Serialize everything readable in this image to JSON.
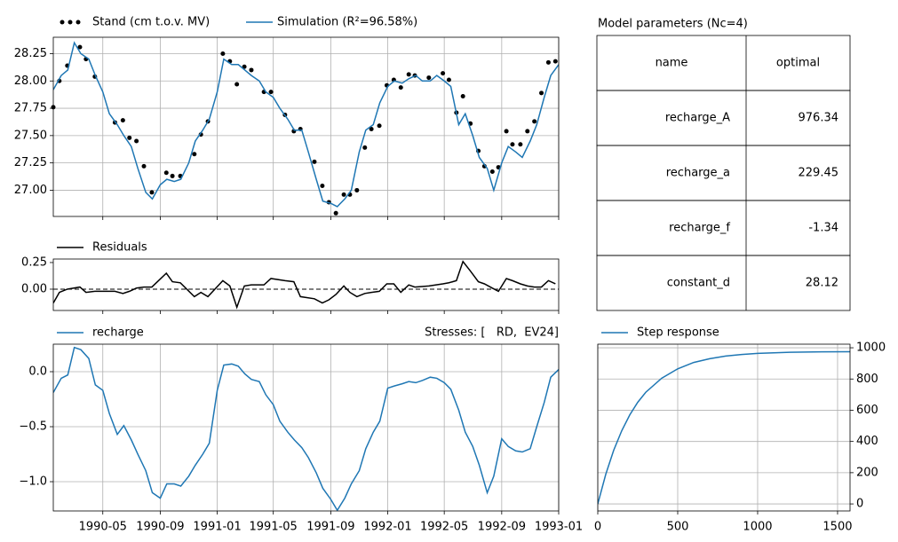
{
  "chart_data": [
    {
      "type": "line",
      "xlim": [
        "1990-01-15",
        "1993-01-01"
      ],
      "ylim": [
        26.76,
        28.4
      ],
      "yticks": [
        28.25,
        {
          "value": 28,
          "label": "28.00"
        },
        27.75,
        {
          "value": 27.5,
          "label": "27.50"
        },
        27.25,
        {
          "value": 27,
          "label": "27.00"
        }
      ],
      "xticks": [
        "1990-05",
        "1990-09",
        "1991-01",
        "1991-05",
        "1991-09",
        "1992-01",
        "1992-05",
        "1992-09",
        "1993-01"
      ],
      "xticklabels": false,
      "grid": true,
      "series": [
        {
          "name": "Stand (cm t.o.v. MV)",
          "color": "#000000",
          "marker": "dot",
          "x": [
            "1990-01-15",
            "1990-01-28",
            "1990-02-14",
            "1990-03-13",
            "1990-03-26",
            "1990-04-14",
            "1990-05-27",
            "1990-06-13",
            "1990-06-27",
            "1990-07-12",
            "1990-07-28",
            "1990-08-14",
            "1990-09-14",
            "1990-09-27",
            "1990-10-14",
            "1990-11-13",
            "1990-11-27",
            "1990-12-12",
            "1991-01-13",
            "1991-01-28",
            "1991-02-12",
            "1991-02-28",
            "1991-03-15",
            "1991-04-11",
            "1991-04-26",
            "1991-05-26",
            "1991-06-14",
            "1991-06-28",
            "1991-07-28",
            "1991-08-14",
            "1991-08-28",
            "1991-09-12",
            "1991-09-29",
            "1991-10-12",
            "1991-10-27",
            "1991-11-13",
            "1991-11-27",
            "1991-12-14",
            "1991-12-30",
            "1992-01-14",
            "1992-01-29",
            "1992-02-15",
            "1992-02-28",
            "1992-03-29",
            "1992-04-28",
            "1992-05-11",
            "1992-05-27",
            "1992-06-10",
            "1992-06-26",
            "1992-07-13",
            "1992-07-26",
            "1992-08-12",
            "1992-08-25",
            "1992-09-11",
            "1992-09-24",
            "1992-10-11",
            "1992-10-26",
            "1992-11-10",
            "1992-11-25",
            "1992-12-10",
            "1992-12-25"
          ],
          "values": [
            27.76,
            28.0,
            28.14,
            28.31,
            28.2,
            28.04,
            27.62,
            27.64,
            27.48,
            27.45,
            27.22,
            26.98,
            27.16,
            27.13,
            27.13,
            27.33,
            27.51,
            27.63,
            28.25,
            28.18,
            27.97,
            28.13,
            28.1,
            27.9,
            27.9,
            27.69,
            27.54,
            27.56,
            27.26,
            27.04,
            26.89,
            26.79,
            26.96,
            26.96,
            27.0,
            27.39,
            27.56,
            27.59,
            27.96,
            28.01,
            27.94,
            28.06,
            28.05,
            28.03,
            28.07,
            28.01,
            27.71,
            27.86,
            27.61,
            27.36,
            27.22,
            27.17,
            27.21,
            27.54,
            27.42,
            27.42,
            27.54,
            27.63,
            27.89,
            28.17,
            28.18
          ]
        },
        {
          "name": "Simulation (R²=96.58%)",
          "color": "#1f77b4",
          "x": [
            "1990-01-15",
            "1990-02-01",
            "1990-02-15",
            "1990-03-01",
            "1990-03-15",
            "1990-04-01",
            "1990-04-15",
            "1990-05-01",
            "1990-05-15",
            "1990-06-01",
            "1990-06-15",
            "1990-07-01",
            "1990-07-15",
            "1990-08-01",
            "1990-08-15",
            "1990-09-01",
            "1990-09-15",
            "1990-10-01",
            "1990-10-15",
            "1990-11-01",
            "1990-11-15",
            "1990-12-01",
            "1990-12-15",
            "1991-01-01",
            "1991-01-15",
            "1991-02-01",
            "1991-02-15",
            "1991-03-01",
            "1991-03-15",
            "1991-04-01",
            "1991-04-15",
            "1991-05-01",
            "1991-05-15",
            "1991-06-01",
            "1991-06-15",
            "1991-07-01",
            "1991-07-15",
            "1991-08-01",
            "1991-08-15",
            "1991-09-01",
            "1991-09-15",
            "1991-10-01",
            "1991-10-15",
            "1991-11-01",
            "1991-11-15",
            "1991-12-01",
            "1991-12-15",
            "1992-01-01",
            "1992-01-15",
            "1992-02-01",
            "1992-02-15",
            "1992-03-01",
            "1992-03-15",
            "1992-04-01",
            "1992-04-15",
            "1992-05-01",
            "1992-05-15",
            "1992-06-01",
            "1992-06-15",
            "1992-07-01",
            "1992-07-15",
            "1992-08-01",
            "1992-08-15",
            "1992-09-01",
            "1992-09-15",
            "1992-10-01",
            "1992-10-15",
            "1992-11-01",
            "1992-11-15",
            "1992-12-01",
            "1992-12-15",
            "1993-01-01"
          ],
          "values": [
            27.92,
            28.05,
            28.1,
            28.35,
            28.25,
            28.2,
            28.05,
            27.9,
            27.7,
            27.6,
            27.5,
            27.4,
            27.2,
            26.98,
            26.92,
            27.05,
            27.1,
            27.08,
            27.1,
            27.25,
            27.45,
            27.55,
            27.65,
            27.9,
            28.2,
            28.15,
            28.15,
            28.1,
            28.05,
            28.0,
            27.9,
            27.85,
            27.75,
            27.65,
            27.55,
            27.55,
            27.35,
            27.1,
            26.9,
            26.88,
            26.85,
            26.92,
            27.0,
            27.35,
            27.55,
            27.6,
            27.8,
            27.95,
            28.0,
            27.98,
            28.02,
            28.05,
            28.0,
            28.0,
            28.05,
            28.0,
            27.95,
            27.6,
            27.7,
            27.5,
            27.3,
            27.2,
            27.0,
            27.25,
            27.4,
            27.35,
            27.3,
            27.45,
            27.6,
            27.85,
            28.05,
            28.15
          ]
        }
      ]
    },
    {
      "type": "line",
      "xlim": [
        "1990-01-15",
        "1993-01-01"
      ],
      "ylim": [
        -0.2,
        0.283
      ],
      "yticks": [
        0.25,
        {
          "value": 0,
          "label": "0.00"
        }
      ],
      "xticks": [
        "1990-05",
        "1990-09",
        "1991-01",
        "1991-05",
        "1991-09",
        "1992-01",
        "1992-05",
        "1992-09",
        "1993-01"
      ],
      "xticklabels": false,
      "grid": false,
      "zero_line": true,
      "series": [
        {
          "name": "Residuals",
          "color": "#000000",
          "x": [
            "1990-01-15",
            "1990-01-28",
            "1990-02-14",
            "1990-03-13",
            "1990-03-26",
            "1990-04-14",
            "1990-05-27",
            "1990-06-13",
            "1990-06-27",
            "1990-07-12",
            "1990-07-28",
            "1990-08-14",
            "1990-09-14",
            "1990-09-27",
            "1990-10-14",
            "1990-11-13",
            "1990-11-27",
            "1990-12-12",
            "1991-01-13",
            "1991-01-28",
            "1991-02-12",
            "1991-02-28",
            "1991-03-15",
            "1991-04-11",
            "1991-04-26",
            "1991-05-26",
            "1991-06-14",
            "1991-06-28",
            "1991-07-28",
            "1991-08-14",
            "1991-08-28",
            "1991-09-12",
            "1991-09-29",
            "1991-10-12",
            "1991-10-27",
            "1991-11-13",
            "1991-11-27",
            "1991-12-14",
            "1991-12-30",
            "1992-01-14",
            "1992-01-29",
            "1992-02-15",
            "1992-02-28",
            "1992-03-29",
            "1992-04-28",
            "1992-05-11",
            "1992-05-27",
            "1992-06-10",
            "1992-06-26",
            "1992-07-13",
            "1992-07-26",
            "1992-08-12",
            "1992-08-25",
            "1992-09-11",
            "1992-09-24",
            "1992-10-11",
            "1992-10-26",
            "1992-11-10",
            "1992-11-25",
            "1992-12-10",
            "1992-12-25"
          ],
          "values": [
            -0.13,
            -0.03,
            0.0,
            0.02,
            -0.03,
            -0.02,
            -0.02,
            -0.04,
            -0.02,
            0.01,
            0.02,
            0.02,
            0.15,
            0.07,
            0.06,
            -0.07,
            -0.03,
            -0.07,
            0.08,
            0.03,
            -0.17,
            0.03,
            0.04,
            0.04,
            0.1,
            0.08,
            0.07,
            -0.07,
            -0.09,
            -0.13,
            -0.1,
            -0.05,
            0.03,
            -0.03,
            -0.07,
            -0.04,
            -0.03,
            -0.02,
            0.05,
            0.05,
            -0.03,
            0.04,
            0.02,
            0.03,
            0.05,
            0.06,
            0.08,
            0.26,
            0.17,
            0.07,
            0.05,
            0.01,
            -0.02,
            0.1,
            0.08,
            0.05,
            0.03,
            0.02,
            0.02,
            0.08,
            0.05
          ]
        }
      ]
    },
    {
      "type": "line",
      "title": "Stresses: [   RD,  EV24]",
      "xlim": [
        "1990-01-15",
        "1993-01-01"
      ],
      "ylim": [
        -1.266,
        0.25
      ],
      "yticks": [
        {
          "value": 0,
          "label": "0.0"
        },
        {
          "value": -0.5,
          "label": "−0.5"
        },
        {
          "value": -1,
          "label": "−1.0"
        }
      ],
      "xticks": [
        "1990-05",
        "1990-09",
        "1991-01",
        "1991-05",
        "1991-09",
        "1992-01",
        "1992-05",
        "1992-09",
        "1993-01"
      ],
      "xticklabels": true,
      "grid": true,
      "series": [
        {
          "name": "recharge",
          "color": "#1f77b4",
          "x": [
            "1990-01-15",
            "1990-02-01",
            "1990-02-15",
            "1990-03-01",
            "1990-03-15",
            "1990-04-01",
            "1990-04-15",
            "1990-05-01",
            "1990-05-15",
            "1990-06-01",
            "1990-06-15",
            "1990-07-01",
            "1990-07-15",
            "1990-08-01",
            "1990-08-15",
            "1990-09-01",
            "1990-09-15",
            "1990-10-01",
            "1990-10-15",
            "1990-11-01",
            "1990-11-15",
            "1990-12-01",
            "1990-12-15",
            "1991-01-01",
            "1991-01-15",
            "1991-02-01",
            "1991-02-15",
            "1991-03-01",
            "1991-03-15",
            "1991-04-01",
            "1991-04-15",
            "1991-05-01",
            "1991-05-15",
            "1991-06-01",
            "1991-06-15",
            "1991-07-01",
            "1991-07-15",
            "1991-08-01",
            "1991-08-15",
            "1991-09-01",
            "1991-09-15",
            "1991-10-01",
            "1991-10-15",
            "1991-11-01",
            "1991-11-15",
            "1991-12-01",
            "1991-12-15",
            "1992-01-01",
            "1992-01-15",
            "1992-02-01",
            "1992-02-15",
            "1992-03-01",
            "1992-03-15",
            "1992-04-01",
            "1992-04-15",
            "1992-05-01",
            "1992-05-15",
            "1992-06-01",
            "1992-06-15",
            "1992-07-01",
            "1992-07-15",
            "1992-08-01",
            "1992-08-15",
            "1992-09-01",
            "1992-09-15",
            "1992-10-01",
            "1992-10-15",
            "1992-11-01",
            "1992-11-15",
            "1992-12-01",
            "1992-12-15",
            "1993-01-01"
          ],
          "values": [
            -0.19,
            -0.06,
            -0.03,
            0.22,
            0.2,
            0.12,
            -0.12,
            -0.17,
            -0.38,
            -0.57,
            -0.49,
            -0.62,
            -0.75,
            -0.9,
            -1.1,
            -1.15,
            -1.02,
            -1.02,
            -1.04,
            -0.95,
            -0.85,
            -0.75,
            -0.65,
            -0.17,
            0.06,
            0.07,
            0.05,
            -0.02,
            -0.07,
            -0.09,
            -0.21,
            -0.3,
            -0.45,
            -0.55,
            -0.62,
            -0.69,
            -0.78,
            -0.92,
            -1.06,
            -1.16,
            -1.26,
            -1.15,
            -1.02,
            -0.9,
            -0.7,
            -0.55,
            -0.45,
            -0.15,
            -0.13,
            -0.11,
            -0.09,
            -0.1,
            -0.08,
            -0.05,
            -0.06,
            -0.1,
            -0.16,
            -0.35,
            -0.55,
            -0.68,
            -0.85,
            -1.1,
            -0.95,
            -0.61,
            -0.68,
            -0.72,
            -0.73,
            -0.7,
            -0.5,
            -0.28,
            -0.05,
            0.02
          ]
        }
      ]
    },
    {
      "type": "line",
      "xlim": [
        0,
        1578
      ],
      "ylim": [
        -45,
        1023
      ],
      "yaxis": "right",
      "xticks": [
        0,
        500,
        1000,
        1500
      ],
      "yticks": [
        0,
        200,
        400,
        600,
        800,
        1000
      ],
      "xticklabels": true,
      "grid": true,
      "series": [
        {
          "name": "Step response",
          "color": "#1f77b4",
          "x": [
            0,
            50,
            100,
            150,
            200,
            250,
            300,
            400,
            500,
            600,
            700,
            800,
            900,
            1000,
            1200,
            1400,
            1578
          ],
          "values": [
            0,
            190,
            345,
            469,
            570,
            651,
            715,
            805,
            865,
            906,
            930,
            947,
            957,
            964,
            971,
            974,
            975
          ]
        }
      ]
    }
  ],
  "table": {
    "title": "Model parameters (Nc=4)",
    "header": [
      "name",
      "optimal"
    ],
    "rows": [
      [
        "recharge_A",
        976.34
      ],
      [
        "recharge_a",
        229.45
      ],
      [
        "recharge_f",
        -1.34
      ],
      [
        "constant_d",
        28.12
      ]
    ]
  }
}
